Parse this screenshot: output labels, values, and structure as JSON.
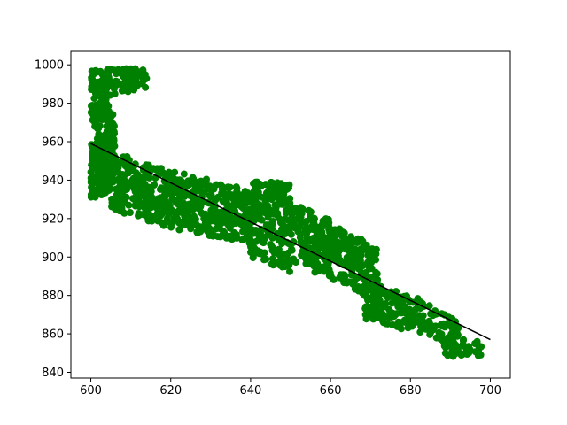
{
  "chart_data": {
    "type": "scatter",
    "title": "",
    "xlabel": "",
    "ylabel": "",
    "xlim": [
      595,
      705
    ],
    "ylim": [
      837,
      1007
    ],
    "xticks": [
      600,
      620,
      640,
      660,
      680,
      700
    ],
    "yticks": [
      840,
      860,
      880,
      900,
      920,
      940,
      960,
      980,
      1000
    ],
    "grid": false,
    "colors": {
      "points": "#008000",
      "line": "#000000"
    },
    "regression_line": {
      "x": [
        600,
        700
      ],
      "y": [
        959,
        857
      ]
    },
    "series": [
      {
        "segments": [
          {
            "x0": 600,
            "x1": 614,
            "yc0": 990,
            "yc1": 993,
            "w0": 16,
            "w1": 10,
            "n": 120
          },
          {
            "x0": 600,
            "x1": 606,
            "yc0": 985,
            "yc1": 960,
            "w0": 26,
            "w1": 26,
            "n": 120
          },
          {
            "x0": 600,
            "x1": 605,
            "yc0": 945,
            "yc1": 950,
            "w0": 32,
            "w1": 30,
            "n": 160
          },
          {
            "x0": 605,
            "x1": 620,
            "yc0": 940,
            "yc1": 930,
            "w0": 30,
            "w1": 30,
            "n": 260
          },
          {
            "x0": 620,
            "x1": 640,
            "yc0": 930,
            "yc1": 921,
            "w0": 30,
            "w1": 28,
            "n": 320
          },
          {
            "x0": 640,
            "x1": 650,
            "yc0": 920,
            "yc1": 915,
            "w0": 40,
            "w1": 46,
            "n": 220
          },
          {
            "x0": 650,
            "x1": 660,
            "yc0": 912,
            "yc1": 905,
            "w0": 34,
            "w1": 30,
            "n": 160
          },
          {
            "x0": 660,
            "x1": 672,
            "yc0": 902,
            "yc1": 892,
            "w0": 30,
            "w1": 26,
            "n": 160
          },
          {
            "x0": 668,
            "x1": 684,
            "yc0": 878,
            "yc1": 868,
            "w0": 20,
            "w1": 18,
            "n": 150
          },
          {
            "x0": 684,
            "x1": 692,
            "yc0": 868,
            "yc1": 858,
            "w0": 16,
            "w1": 16,
            "n": 60
          },
          {
            "x0": 688,
            "x1": 698,
            "yc0": 853,
            "yc1": 852,
            "w0": 9,
            "w1": 9,
            "n": 40
          }
        ]
      }
    ]
  }
}
